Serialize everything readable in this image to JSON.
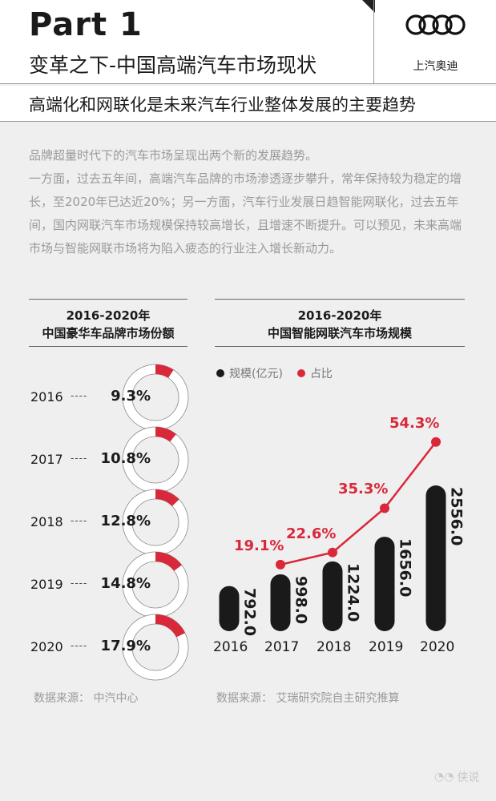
{
  "header": {
    "part": "Part 1",
    "title": "变革之下-中国高端汽车市场现状",
    "brand": "上汽奥迪",
    "subtitle": "高端化和网联化是未来汽车行业整体发展的主要趋势"
  },
  "intro": {
    "line1": "品牌超量时代下的汽车市场呈现出两个新的发展趋势。",
    "line2": "一方面，过去五年间，高端汽车品牌的市场渗透逐步攀升，常年保持较为稳定的增长，至2020年已达近20%；另一方面，汽车行业发展日趋智能网联化，过去五年间，国内网联汽车市场规模保持较高增长，且增速不断提升。可以预见，未来高端市场与智能网联市场将为陷入疲态的行业注入增长新动力。"
  },
  "watermark": "侠说",
  "colors": {
    "accent": "#d9283a",
    "bar": "#1a1a1a",
    "background": "#efefef"
  },
  "chart_data": [
    {
      "type": "pie",
      "title_line1": "2016-2020年",
      "title_line2": "中国豪华车品牌市场份额",
      "categories": [
        "2016",
        "2017",
        "2018",
        "2019",
        "2020"
      ],
      "values": [
        9.3,
        10.8,
        12.8,
        14.8,
        17.9
      ],
      "labels": [
        "9.3%",
        "10.8%",
        "12.8%",
        "14.8%",
        "17.9%"
      ],
      "dots": "----",
      "source": "数据来源：  中汽中心"
    },
    {
      "type": "bar",
      "title_line1": "2016-2020年",
      "title_line2": "中国智能网联汽车市场规模",
      "legend": [
        "规模(亿元)",
        "占比"
      ],
      "legend_placement": "top-left",
      "categories": [
        "2016",
        "2017",
        "2018",
        "2019",
        "2020"
      ],
      "series": [
        {
          "name": "规模(亿元)",
          "type": "bar",
          "values": [
            792.0,
            998.0,
            1224.0,
            1656.0,
            2556.0
          ],
          "labels": [
            "792.0",
            "998.0",
            "1224.0",
            "1656.0",
            "2556.0"
          ]
        },
        {
          "name": "占比",
          "type": "line",
          "x": [
            "2017",
            "2018",
            "2019",
            "2020"
          ],
          "values": [
            19.1,
            22.6,
            35.3,
            54.3
          ],
          "labels": [
            "19.1%",
            "22.6%",
            "35.3%",
            "54.3%"
          ]
        }
      ],
      "source": "数据来源：  艾瑞研究院自主研究推算"
    }
  ]
}
